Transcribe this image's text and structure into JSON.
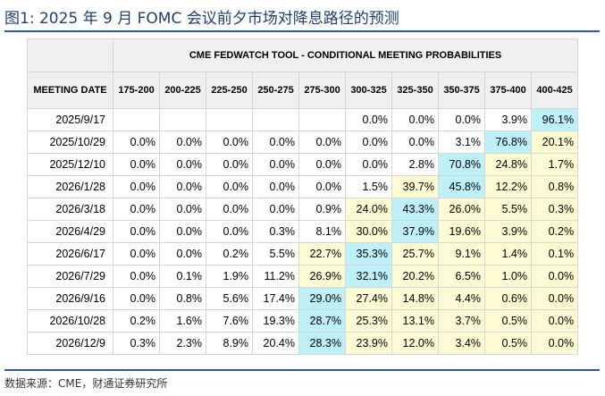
{
  "figure": {
    "title": "图1:   2025 年 9 月 FOMC 会议前夕市场对降息路径的预测",
    "source": "数据来源：CME，财通证券研究所"
  },
  "colors": {
    "rule": "#2e5a96",
    "title": "#1f3f6e",
    "header_bg": "#f0f0f0",
    "yellow": "#fdfbd4",
    "cyan": "#bdf0f8"
  },
  "table": {
    "super_header": "CME FEDWATCH TOOL - CONDITIONAL MEETING PROBABILITIES",
    "date_header": "MEETING DATE",
    "ranges": [
      "175-200",
      "200-225",
      "225-250",
      "250-275",
      "275-300",
      "300-325",
      "325-350",
      "350-375",
      "375-400",
      "400-425"
    ],
    "rows": [
      {
        "date": "2025/9/17",
        "values": [
          "",
          "",
          "",
          "",
          "",
          "0.0%",
          "0.0%",
          "0.0%",
          "3.9%",
          "96.1%"
        ],
        "styles": [
          "w",
          "w",
          "w",
          "w",
          "w",
          "w",
          "w",
          "w",
          "w",
          "c"
        ]
      },
      {
        "date": "2025/10/29",
        "values": [
          "0.0%",
          "0.0%",
          "0.0%",
          "0.0%",
          "0.0%",
          "0.0%",
          "0.0%",
          "3.1%",
          "76.8%",
          "20.1%"
        ],
        "styles": [
          "w",
          "w",
          "w",
          "w",
          "w",
          "w",
          "w",
          "w",
          "c",
          "y"
        ]
      },
      {
        "date": "2025/12/10",
        "values": [
          "0.0%",
          "0.0%",
          "0.0%",
          "0.0%",
          "0.0%",
          "0.0%",
          "2.8%",
          "70.8%",
          "24.8%",
          "1.7%"
        ],
        "styles": [
          "w",
          "w",
          "w",
          "w",
          "w",
          "w",
          "w",
          "c",
          "y",
          "y"
        ]
      },
      {
        "date": "2026/1/28",
        "values": [
          "0.0%",
          "0.0%",
          "0.0%",
          "0.0%",
          "0.0%",
          "1.5%",
          "39.7%",
          "45.8%",
          "12.2%",
          "0.8%"
        ],
        "styles": [
          "w",
          "w",
          "w",
          "w",
          "w",
          "w",
          "y",
          "c",
          "y",
          "y"
        ]
      },
      {
        "date": "2026/3/18",
        "values": [
          "0.0%",
          "0.0%",
          "0.0%",
          "0.0%",
          "0.9%",
          "24.0%",
          "43.3%",
          "26.0%",
          "5.5%",
          "0.3%"
        ],
        "styles": [
          "w",
          "w",
          "w",
          "w",
          "w",
          "y",
          "c",
          "y",
          "y",
          "y"
        ]
      },
      {
        "date": "2026/4/29",
        "values": [
          "0.0%",
          "0.0%",
          "0.0%",
          "0.3%",
          "8.1%",
          "30.0%",
          "37.9%",
          "19.6%",
          "3.9%",
          "0.2%"
        ],
        "styles": [
          "w",
          "w",
          "w",
          "w",
          "w",
          "y",
          "c",
          "y",
          "y",
          "y"
        ]
      },
      {
        "date": "2026/6/17",
        "values": [
          "0.0%",
          "0.0%",
          "0.2%",
          "5.5%",
          "22.7%",
          "35.3%",
          "25.7%",
          "9.1%",
          "1.4%",
          "0.1%"
        ],
        "styles": [
          "w",
          "w",
          "w",
          "w",
          "y",
          "c",
          "y",
          "y",
          "y",
          "y"
        ]
      },
      {
        "date": "2026/7/29",
        "values": [
          "0.0%",
          "0.1%",
          "1.9%",
          "11.2%",
          "26.9%",
          "32.1%",
          "20.2%",
          "6.5%",
          "1.0%",
          "0.0%"
        ],
        "styles": [
          "w",
          "w",
          "w",
          "w",
          "y",
          "c",
          "y",
          "y",
          "y",
          "y"
        ]
      },
      {
        "date": "2026/9/16",
        "values": [
          "0.0%",
          "0.8%",
          "5.6%",
          "17.4%",
          "29.0%",
          "27.4%",
          "14.8%",
          "4.4%",
          "0.6%",
          "0.0%"
        ],
        "styles": [
          "w",
          "w",
          "w",
          "w",
          "c",
          "y",
          "y",
          "y",
          "y",
          "y"
        ]
      },
      {
        "date": "2026/10/28",
        "values": [
          "0.2%",
          "1.6%",
          "7.6%",
          "19.3%",
          "28.7%",
          "25.3%",
          "13.1%",
          "3.7%",
          "0.5%",
          "0.0%"
        ],
        "styles": [
          "w",
          "w",
          "w",
          "w",
          "c",
          "y",
          "y",
          "y",
          "y",
          "y"
        ]
      },
      {
        "date": "2026/12/9",
        "values": [
          "0.3%",
          "2.3%",
          "8.9%",
          "20.4%",
          "28.3%",
          "23.9%",
          "12.0%",
          "3.4%",
          "0.5%",
          "0.0%"
        ],
        "styles": [
          "w",
          "w",
          "w",
          "w",
          "c",
          "y",
          "y",
          "y",
          "y",
          "y"
        ]
      }
    ]
  }
}
